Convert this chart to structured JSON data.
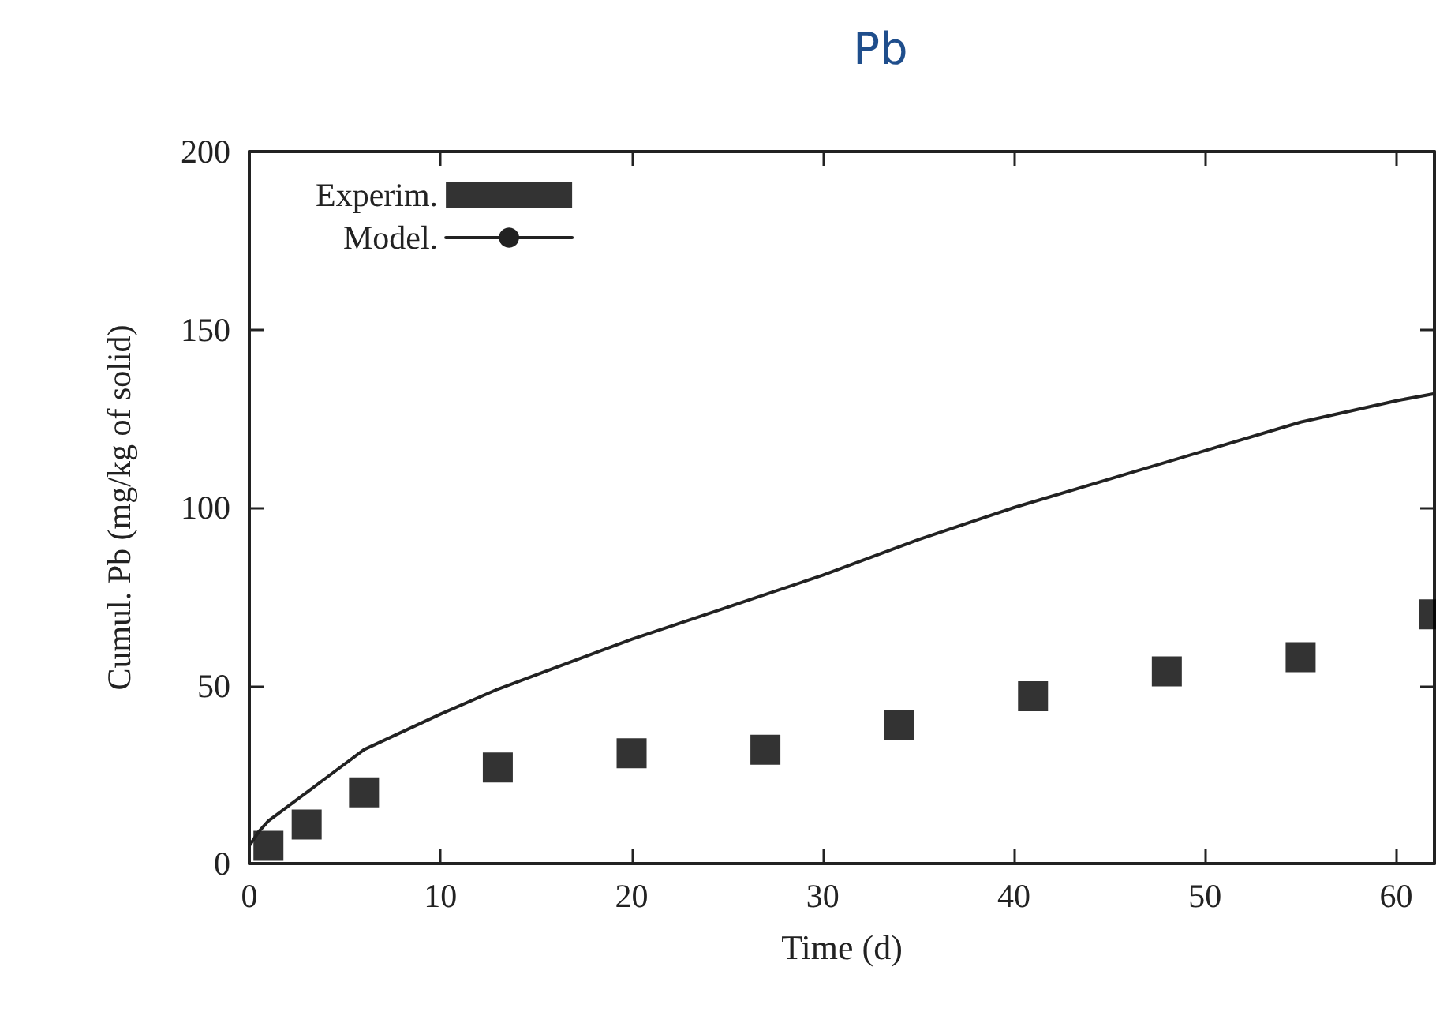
{
  "chart_data": {
    "type": "scatter",
    "title": "Pb",
    "xlabel": "Time (d)",
    "ylabel": "Cumul. Pb (mg/kg of solid)",
    "xlim": [
      0,
      62
    ],
    "xticks": [
      0,
      10,
      20,
      30,
      40,
      50,
      60
    ],
    "ylim": [
      0,
      200
    ],
    "yticks": [
      0,
      50,
      100,
      150,
      200
    ],
    "grid": false,
    "legend": "top left",
    "series": [
      {
        "name": "Experim.",
        "marker": "square",
        "color": "#000000",
        "x": [
          1,
          3,
          6,
          13,
          20,
          27,
          34,
          41,
          48,
          55,
          62
        ],
        "values": [
          5,
          11,
          20,
          27,
          31,
          32,
          39,
          47,
          54,
          58,
          70
        ]
      },
      {
        "name": "Model.",
        "type": "line",
        "marker": "none",
        "line_style": "solid",
        "color": "#222222",
        "x": [
          0,
          0.5,
          1,
          2,
          3,
          4,
          6,
          8,
          10,
          13,
          16,
          20,
          25,
          30,
          35,
          40,
          45,
          50,
          55,
          60,
          62
        ],
        "values": [
          5,
          9,
          12,
          16,
          20,
          24,
          32,
          37,
          42,
          49,
          55,
          63,
          72,
          81,
          91,
          100,
          108,
          116,
          124,
          130,
          132
        ]
      }
    ]
  }
}
